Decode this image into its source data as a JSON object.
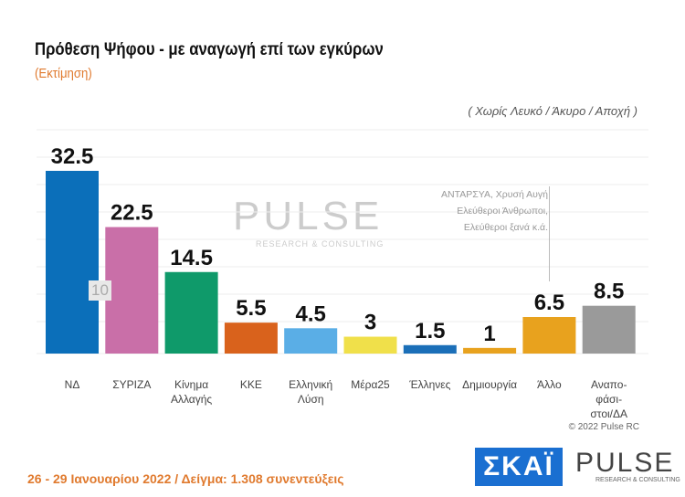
{
  "chart_data": {
    "type": "bar",
    "title": "Πρόθεση Ψήφου - με αναγωγή επί των εγκύρων",
    "subtitle": "(Εκτίμηση)",
    "note": "( Χωρίς Λευκό / Άκυρο / Αποχή )",
    "categories": [
      "ΝΔ",
      "ΣΥΡΙΖΑ",
      "Κίνημα Αλλαγής",
      "ΚΚΕ",
      "Ελληνική Λύση",
      "Μέρα25",
      "Έλληνες",
      "Δημιουργία",
      "Άλλο",
      "Αναπο-φάσι-στοι/ΔΑ"
    ],
    "values": [
      32.5,
      22.5,
      14.5,
      5.5,
      4.5,
      3,
      1.5,
      1,
      6.5,
      8.5
    ],
    "labels": [
      "32.5",
      "22.5",
      "14.5",
      "5.5",
      "4.5",
      "3",
      "1.5",
      "1",
      "6.5",
      "8.5"
    ],
    "colors": [
      "#0b6fba",
      "#c96fa8",
      "#0f9a6a",
      "#d9621c",
      "#5aaee6",
      "#f0e04a",
      "#1b6fb8",
      "#e8a21e",
      "#e8a21e",
      "#9a9a9a"
    ],
    "ylim": [
      0,
      33
    ],
    "grid": true,
    "gap_marker": "10",
    "allo_note": [
      "ΑΝΤΑΡΣΥΑ,  Χρυσή Αυγή",
      "Ελεύθεροι Άνθρωποι,",
      "Ελεύθεροι ξανά        κ.ά."
    ]
  },
  "watermark": "PULSE",
  "watermark_sub": "RESEARCH & CONSULTING",
  "copyright": "© 2022 Pulse RC",
  "footer": "26 - 29 Ιανουαρίου  2022  /  Δείγμα:  1.308 συνεντεύξεις",
  "logos": {
    "skai": "ΣΚΑΪ",
    "pulse": "PULSE",
    "pulse_sub": "RESEARCH & CONSULTING"
  }
}
